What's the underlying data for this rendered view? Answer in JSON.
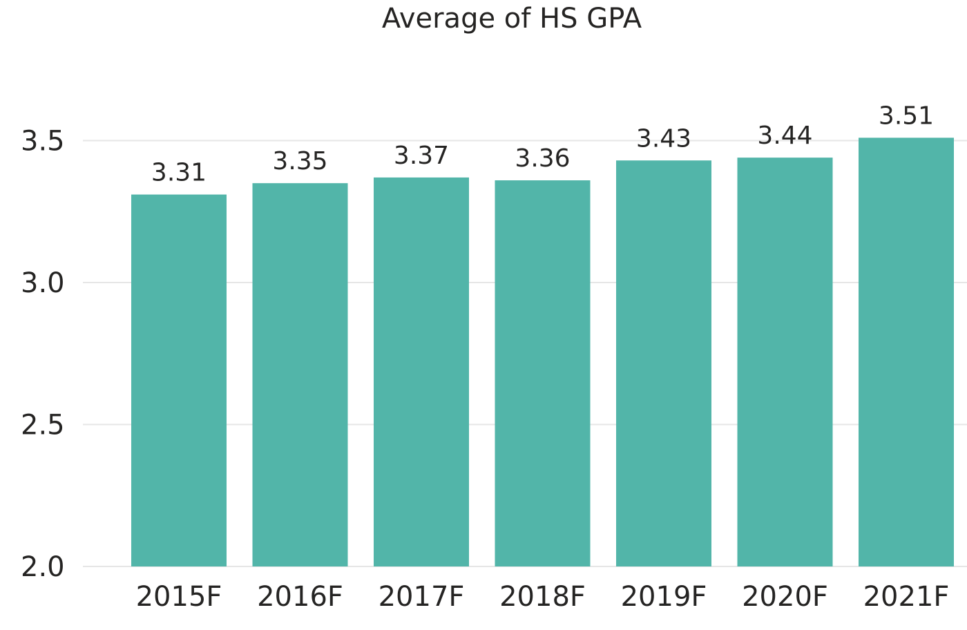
{
  "chart_data": {
    "type": "bar",
    "title": "Average of HS GPA",
    "xlabel": "",
    "ylabel": "",
    "categories": [
      "2015F",
      "2016F",
      "2017F",
      "2018F",
      "2019F",
      "2020F",
      "2021F"
    ],
    "values": [
      3.31,
      3.35,
      3.37,
      3.36,
      3.43,
      3.44,
      3.51
    ],
    "data_labels": [
      "3.31",
      "3.35",
      "3.37",
      "3.36",
      "3.43",
      "3.44",
      "3.51"
    ],
    "ylim": [
      2.0,
      3.7
    ],
    "yticks": [
      2.0,
      2.5,
      3.0,
      3.5
    ],
    "ytick_labels": [
      "2.0",
      "2.5",
      "3.0",
      "3.5"
    ],
    "grid": true,
    "legend": "none",
    "bar_color": "#52b5a9"
  }
}
